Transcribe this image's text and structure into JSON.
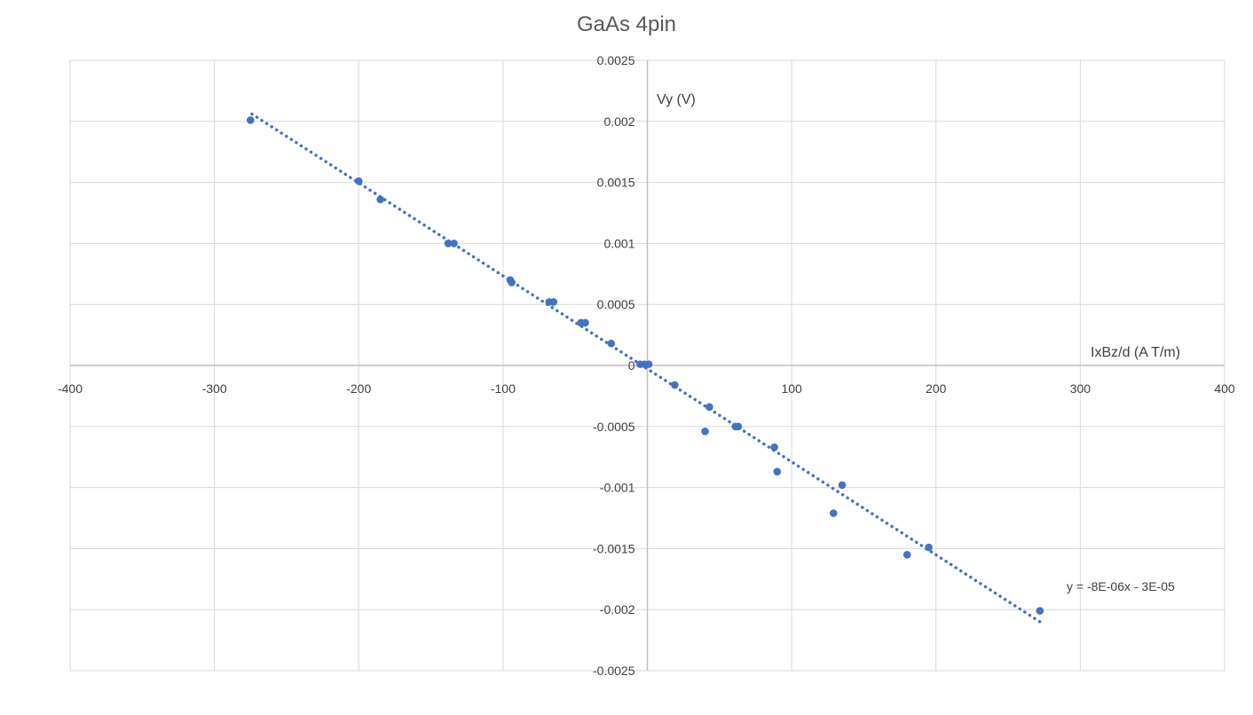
{
  "chart_data": {
    "type": "scatter",
    "title": "GaAs 4pin",
    "xlabel": "IxBz/d (A T/m)",
    "ylabel": "Vy (V)",
    "xlim": [
      -400,
      400
    ],
    "ylim": [
      -0.0025,
      0.0025
    ],
    "x_ticks": [
      -400,
      -300,
      -200,
      -100,
      0,
      100,
      200,
      300,
      400
    ],
    "x_tick_labels": [
      "-400",
      "-300",
      "-200",
      "-100",
      "0",
      "100",
      "200",
      "300",
      "400"
    ],
    "y_ticks": [
      0.0025,
      0.002,
      0.0015,
      0.001,
      0.0005,
      0,
      -0.0005,
      -0.001,
      -0.0015,
      -0.002,
      -0.0025
    ],
    "y_tick_labels": [
      "0.0025",
      "0.002",
      "0.0015",
      "0.001",
      "0.0005",
      "0",
      "-0.0005",
      "-0.001",
      "-0.0015",
      "-0.002",
      "-0.0025"
    ],
    "grid": true,
    "marker_color": "#4472C4",
    "trendline_color": "#4472C4",
    "trendline": {
      "equation": "y = -8E-06x - 3E-05",
      "x_range": [
        -274,
        272
      ],
      "y_at_start": 0.00206,
      "y_at_end": -0.0021
    },
    "series": [
      {
        "x": [
          -275,
          -200,
          -185,
          -138,
          -134,
          -95,
          -94,
          -68,
          -65,
          -46,
          -43,
          -25,
          -5,
          -2,
          1,
          19,
          40,
          43,
          61,
          63,
          88,
          90,
          129,
          135,
          180,
          195,
          272
        ],
        "y": [
          0.00201,
          0.00151,
          0.00136,
          0.001,
          0.001,
          0.0007,
          0.00068,
          0.00052,
          0.00052,
          0.00035,
          0.00035,
          0.00018,
          1e-05,
          1e-05,
          1e-05,
          -0.00016,
          -0.00054,
          -0.00034,
          -0.0005,
          -0.0005,
          -0.00067,
          -0.00087,
          -0.00121,
          -0.00098,
          -0.00155,
          -0.00149,
          -0.00201
        ]
      }
    ]
  }
}
